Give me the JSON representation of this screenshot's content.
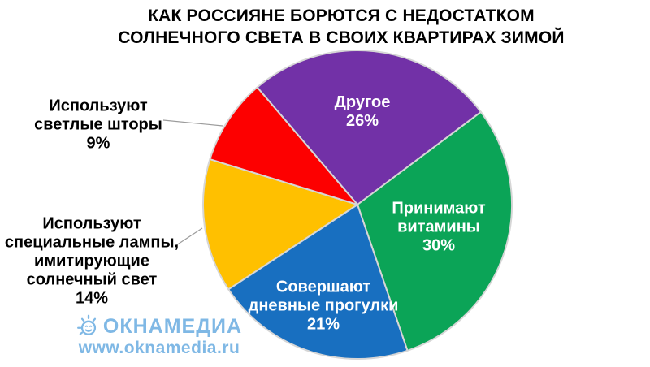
{
  "chart_data": {
    "type": "pie",
    "title": "КАК РОССИЯНЕ БОРЮТСЯ С НЕДОСТАТКОМ\nСОЛНЕЧНОГО СВЕТА В СВОИХ КВАРТИРАХ ЗИМОЙ",
    "unit": "%",
    "direction": "clockwise",
    "start_angle_deg": -40.5,
    "legend": "none",
    "separator_color": "#D6D6D6",
    "callout_line_color": "#9B9B9B",
    "slices": [
      {
        "label": "Другое",
        "value": 26,
        "color": "#7231A7",
        "text_color": "#ffffff",
        "display": "Другое\n26%",
        "label_position": "inside"
      },
      {
        "label": "Принимают витамины",
        "value": 30,
        "color": "#0BA457",
        "text_color": "#ffffff",
        "display": "Принимают\nвитамины\n30%",
        "label_position": "inside"
      },
      {
        "label": "Совершают дневные прогулки",
        "value": 21,
        "color": "#186FC0",
        "text_color": "#ffffff",
        "display": "Совершают\nдневные прогулки\n21%",
        "label_position": "inside"
      },
      {
        "label": "Используют специальные лампы, имитирующие солнечный свет",
        "value": 14,
        "color": "#FFC000",
        "text_color": "#000000",
        "display": "Используют\nспециальные лампы,\nимитирующие\nсолнечный свет\n14%",
        "label_position": "outside-left"
      },
      {
        "label": "Используют светлые шторы",
        "value": 9,
        "color": "#FD0000",
        "text_color": "#000000",
        "display": "Используют\nсветлые шторы\n9%",
        "label_position": "outside-left"
      }
    ]
  },
  "footer": {
    "logo_text": "ОКНАМЕДИА",
    "logo_url": "www.oknamedia.ru",
    "logo_color": "#7FB8E5",
    "logo_icon": "sun-smiley-icon"
  }
}
